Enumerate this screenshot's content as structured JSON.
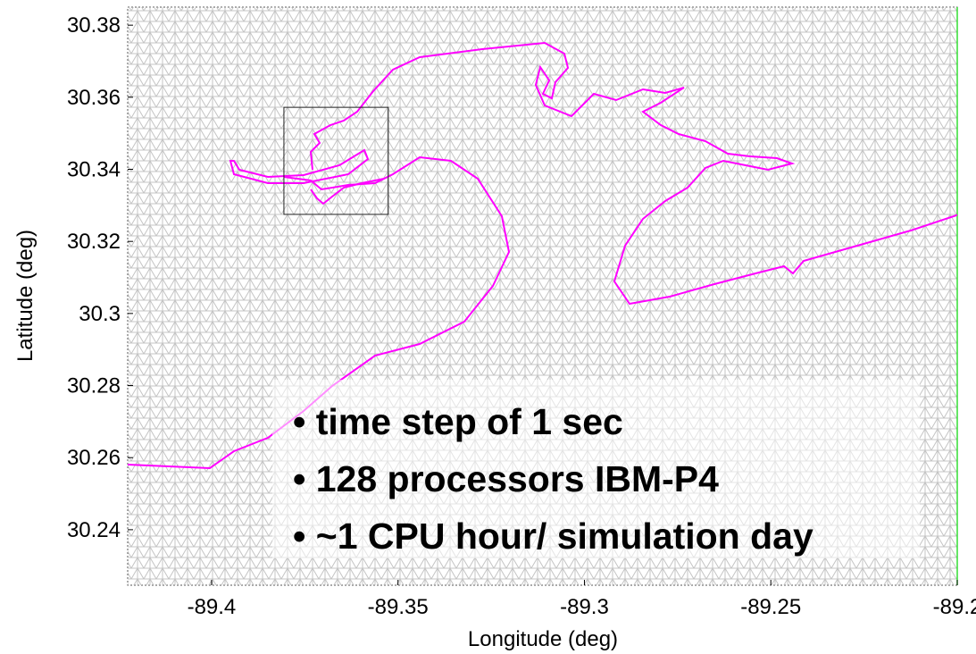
{
  "chart_data": {
    "type": "mesh-map",
    "xlabel": "Longitude (deg)",
    "ylabel": "Latitude (deg)",
    "xlim": [
      -89.4225,
      -89.2
    ],
    "xticks": [
      -89.4,
      -89.35,
      -89.3,
      -89.25,
      -89.2
    ],
    "ylim": [
      30.2246,
      30.385
    ],
    "yticks": [
      30.24,
      30.26,
      30.28,
      30.3,
      30.32,
      30.34,
      30.36,
      30.38
    ],
    "inset_box": {
      "xlim": [
        -89.3806,
        -89.3526
      ],
      "ylim": [
        30.3275,
        30.3572
      ]
    },
    "coast_color": "#ff00ff",
    "notes": [
      "• time step of 1 sec",
      "• 128 processors IBM-P4",
      "• ~1 CPU hour/ simulation day"
    ]
  }
}
